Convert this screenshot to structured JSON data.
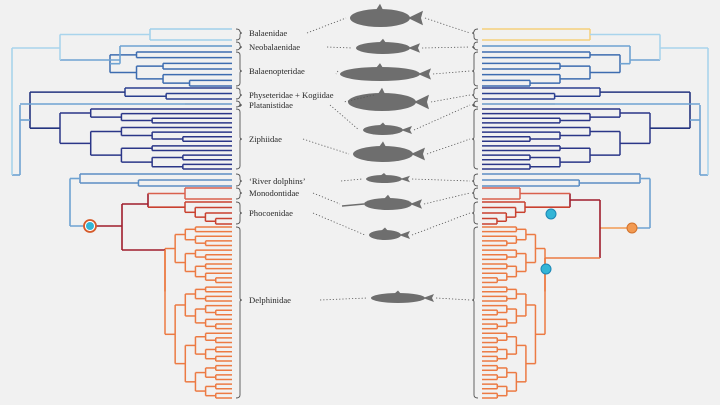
{
  "families": [
    {
      "label": "Balaenidae",
      "tree_color": "#9fd0ea",
      "silhouette": "right-whale"
    },
    {
      "label": "Neobalaenidae",
      "tree_color": "#5f95c8",
      "silhouette": "pygmy-right-whale"
    },
    {
      "label": "Balaenopteridae",
      "tree_color": "#3d6cb0",
      "silhouette": "rorqual"
    },
    {
      "label": "Physeteridae + Kogiidae",
      "tree_color": "#2a3f8f",
      "silhouette": "sperm-whale"
    },
    {
      "label": "Platanistidae",
      "tree_color": "#6b9ac9",
      "silhouette": "river-dolphin"
    },
    {
      "label": "Ziphiidae",
      "tree_color": "#2b3688",
      "silhouette": "beaked-whale"
    },
    {
      "label": "‘River dolphins’",
      "tree_color": "#5c8ec4",
      "silhouette": "river-dolphin"
    },
    {
      "label": "Monodontidae",
      "tree_color": "#d9604c",
      "silhouette": "narwhal"
    },
    {
      "label": "Phocoenidae",
      "tree_color": "#c9412f",
      "silhouette": "porpoise"
    },
    {
      "label": "Delphinidae",
      "tree_color": "#ec7a43",
      "silhouette": "dolphin"
    }
  ],
  "markers": {
    "left_node": {
      "fill": "#33b5d6",
      "ring": "#d55a2a"
    },
    "right_nodes": [
      {
        "fill": "#33b5d6",
        "ring": "#1b86b5"
      },
      {
        "fill": "#33b5d6",
        "ring": "#1b86b5"
      },
      {
        "fill": "#f29a52",
        "ring": "#d2722b"
      }
    ]
  },
  "colors": {
    "background": "#f1f1f1",
    "silhouette": "#6e6e6e",
    "stem_light": "#a9d4ec",
    "stem_mid": "#6fa3d2",
    "stem_dark": "#24347f",
    "odontocete_stem": "#a01d2c",
    "delphinid_orange": "#ec7a43"
  }
}
